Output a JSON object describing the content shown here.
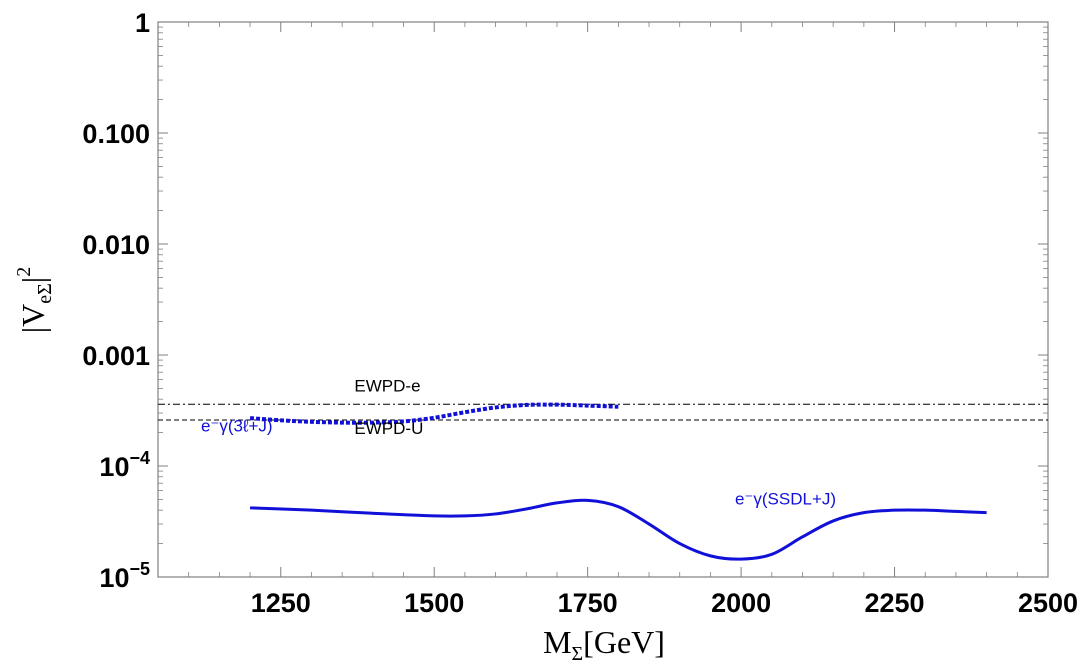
{
  "chart_data": {
    "type": "line",
    "xlabel": "MΣ[GeV]",
    "ylabel": "|VeΣ|²",
    "xlim": [
      1050,
      2500
    ],
    "ylim": [
      1e-05,
      1
    ],
    "y_scale": "log",
    "x_ticks": [
      1250,
      1500,
      1750,
      2000,
      2250,
      2500
    ],
    "y_ticks": [
      {
        "value": 1e-05,
        "label": "10",
        "sup": "−5"
      },
      {
        "value": 0.0001,
        "label": "10",
        "sup": "−4"
      },
      {
        "value": 0.001,
        "label": "0.001",
        "sup": ""
      },
      {
        "value": 0.01,
        "label": "0.010",
        "sup": ""
      },
      {
        "value": 0.1,
        "label": "0.100",
        "sup": ""
      },
      {
        "value": 1,
        "label": "1",
        "sup": ""
      }
    ],
    "colors": {
      "series": "#1010d8",
      "reference": "#000000"
    },
    "reference_lines": [
      {
        "name": "EWPD-e",
        "value": 0.00036,
        "style": "dash-dot"
      },
      {
        "name": "EWPD-U",
        "value": 0.00026,
        "style": "dashed"
      }
    ],
    "series": [
      {
        "name": "e⁻γ(3ℓ+J)",
        "style": "dotted",
        "x": [
          1200,
          1250,
          1300,
          1350,
          1400,
          1450,
          1500,
          1550,
          1600,
          1650,
          1700,
          1750,
          1800
        ],
        "y": [
          0.00027,
          0.000258,
          0.00025,
          0.000246,
          0.000246,
          0.000252,
          0.000272,
          0.000305,
          0.000337,
          0.000355,
          0.000357,
          0.00035,
          0.000342
        ]
      },
      {
        "name": "e⁻γ(SSDL+J)",
        "style": "solid",
        "x": [
          1200,
          1300,
          1400,
          1500,
          1550,
          1600,
          1650,
          1700,
          1750,
          1800,
          1850,
          1900,
          1950,
          2000,
          2050,
          2100,
          2150,
          2200,
          2250,
          2300,
          2350,
          2400
        ],
        "y": [
          4.2e-05,
          4e-05,
          3.75e-05,
          3.55e-05,
          3.55e-05,
          3.7e-05,
          4.1e-05,
          4.65e-05,
          4.9e-05,
          4.3e-05,
          3e-05,
          2e-05,
          1.55e-05,
          1.45e-05,
          1.6e-05,
          2.3e-05,
          3.2e-05,
          3.8e-05,
          4e-05,
          4e-05,
          3.9e-05,
          3.8e-05
        ]
      }
    ],
    "annotations": [
      {
        "text": "EWPD-e",
        "x": 1370,
        "y": 0.00047,
        "color": "#000000"
      },
      {
        "text": "EWPD-U",
        "x": 1370,
        "y": 0.000195,
        "color": "#000000"
      },
      {
        "text": "e⁻γ(3ℓ+J)",
        "x": 1120,
        "y": 0.000205,
        "color": "#1010d8"
      },
      {
        "text": "e⁻γ(SSDL+J)",
        "x": 1990,
        "y": 4.5e-05,
        "color": "#1010d8"
      }
    ]
  }
}
